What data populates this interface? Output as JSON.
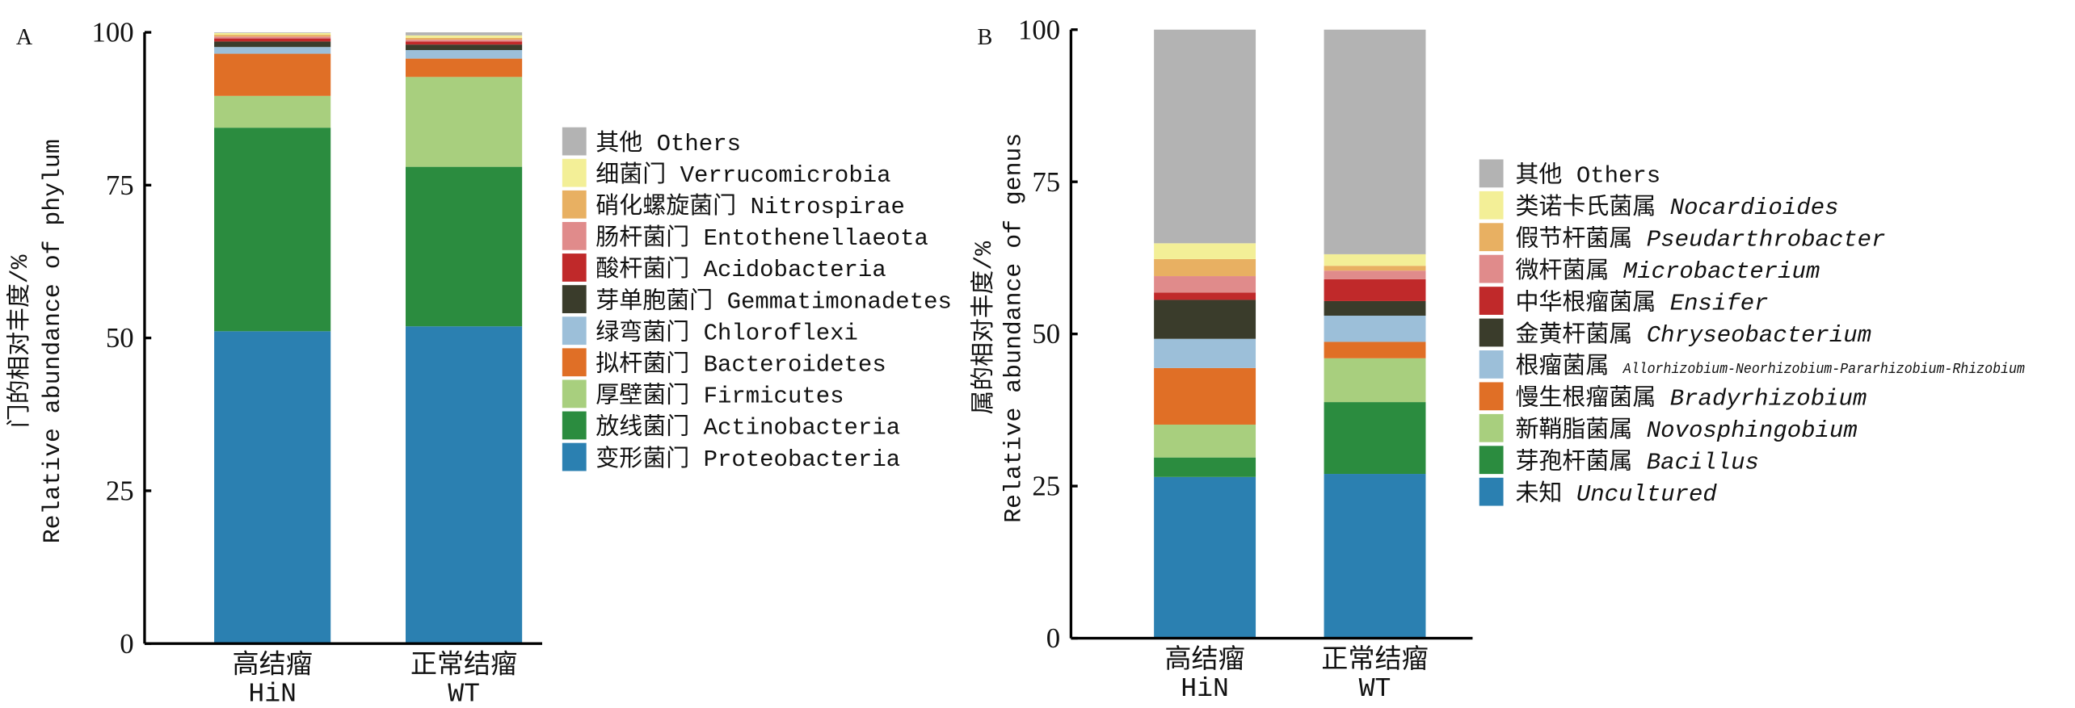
{
  "chart_data": [
    {
      "type": "bar",
      "stacked": true,
      "panel_label": "A",
      "ylabel_cn": "门的相对丰度/%",
      "ylabel_en": "Relative abundance of phylum",
      "ylim": [
        0,
        100
      ],
      "yticks": [
        "0",
        "25",
        "50",
        "75",
        "100"
      ],
      "categories": [
        {
          "cn": "高结瘤",
          "en": "HiN"
        },
        {
          "cn": "正常结瘤",
          "en": "WT"
        }
      ],
      "legend_position": "right",
      "series": [
        {
          "cn": "变形菌门",
          "latin": "Proteobacteria",
          "color": "#2b80b1",
          "values": [
            51.1,
            51.9
          ]
        },
        {
          "cn": "放线菌门",
          "latin": "Actinobacteria",
          "color": "#2b8c3f",
          "values": [
            33.3,
            26.1
          ]
        },
        {
          "cn": "厚壁菌门",
          "latin": "Firmicutes",
          "color": "#a8cf7e",
          "values": [
            5.2,
            14.7
          ]
        },
        {
          "cn": "拟杆菌门",
          "latin": "Bacteroidetes",
          "color": "#e06f26",
          "values": [
            6.9,
            3.0
          ]
        },
        {
          "cn": "绿弯菌门",
          "latin": "Chloroflexi",
          "color": "#9cbfd9",
          "values": [
            1.1,
            1.4
          ]
        },
        {
          "cn": "芽单胞菌门",
          "latin": "Gemmatimonadetes",
          "color": "#3a3c2b",
          "values": [
            0.9,
            0.9
          ]
        },
        {
          "cn": "酸杆菌门",
          "latin": "Acidobacteria",
          "color": "#c0292a",
          "values": [
            0.5,
            0.5
          ]
        },
        {
          "cn": "肠杆菌门",
          "latin": "Entothenellaeota",
          "color": "#e08b8b",
          "values": [
            0.3,
            0.3
          ]
        },
        {
          "cn": "硝化螺旋菌门",
          "latin": "Nitrospirae",
          "color": "#e8b062",
          "values": [
            0.3,
            0.3
          ]
        },
        {
          "cn": "细菌门",
          "latin": "Verrucomicrobia",
          "color": "#f3ef97",
          "values": [
            0.3,
            0.4
          ]
        },
        {
          "cn": "其他",
          "latin": "Others",
          "color": "#b3b3b3",
          "values": [
            0.1,
            0.5
          ]
        }
      ]
    },
    {
      "type": "bar",
      "stacked": true,
      "panel_label": "B",
      "ylabel_cn": "属的相对丰度/%",
      "ylabel_en": "Relative abundance of genus",
      "ylim": [
        0,
        100
      ],
      "yticks": [
        "0",
        "25",
        "50",
        "75",
        "100"
      ],
      "categories": [
        {
          "cn": "高结瘤",
          "en": "HiN"
        },
        {
          "cn": "正常结瘤",
          "en": "WT"
        }
      ],
      "legend_position": "right",
      "series": [
        {
          "cn": "未知",
          "latin": "Uncultured",
          "italic": true,
          "color": "#2b80b1",
          "values": [
            26.5,
            27.0
          ]
        },
        {
          "cn": "芽孢杆菌属",
          "latin": "Bacillus",
          "italic": true,
          "color": "#2b8c3f",
          "values": [
            3.2,
            11.8
          ]
        },
        {
          "cn": "新鞘脂菌属",
          "latin": "Novosphingobium",
          "italic": true,
          "color": "#a8cf7e",
          "values": [
            5.4,
            7.2
          ]
        },
        {
          "cn": "慢生根瘤菌属",
          "latin": "Bradyrhizobium",
          "italic": true,
          "color": "#e06f26",
          "values": [
            9.3,
            2.7
          ]
        },
        {
          "cn": "根瘤菌属",
          "latin": "Allorhizobium-Neorhizobium-Pararhizobium-Rhizobium",
          "italic": true,
          "small": true,
          "color": "#9cbfd9",
          "values": [
            4.8,
            4.3
          ]
        },
        {
          "cn": "金黄杆菌属",
          "latin": "Chryseobacterium",
          "italic": true,
          "color": "#3a3c2b",
          "values": [
            6.4,
            2.4
          ]
        },
        {
          "cn": "中华根瘤菌属",
          "latin": "Ensifer",
          "italic": true,
          "color": "#c0292a",
          "values": [
            1.2,
            3.6
          ]
        },
        {
          "cn": "微杆菌属",
          "latin": "Microbacterium",
          "italic": true,
          "color": "#e08b8b",
          "values": [
            2.7,
            1.4
          ]
        },
        {
          "cn": "假节杆菌属",
          "latin": "Pseudarthrobacter",
          "italic": true,
          "color": "#e8b062",
          "values": [
            2.8,
            0.8
          ]
        },
        {
          "cn": "类诺卡氏菌属",
          "latin": "Nocardioides",
          "italic": true,
          "color": "#f3ef97",
          "values": [
            2.6,
            1.9
          ]
        },
        {
          "cn": "其他",
          "latin": "Others",
          "italic": false,
          "color": "#b3b3b3",
          "values": [
            35.1,
            36.9
          ]
        }
      ]
    }
  ]
}
